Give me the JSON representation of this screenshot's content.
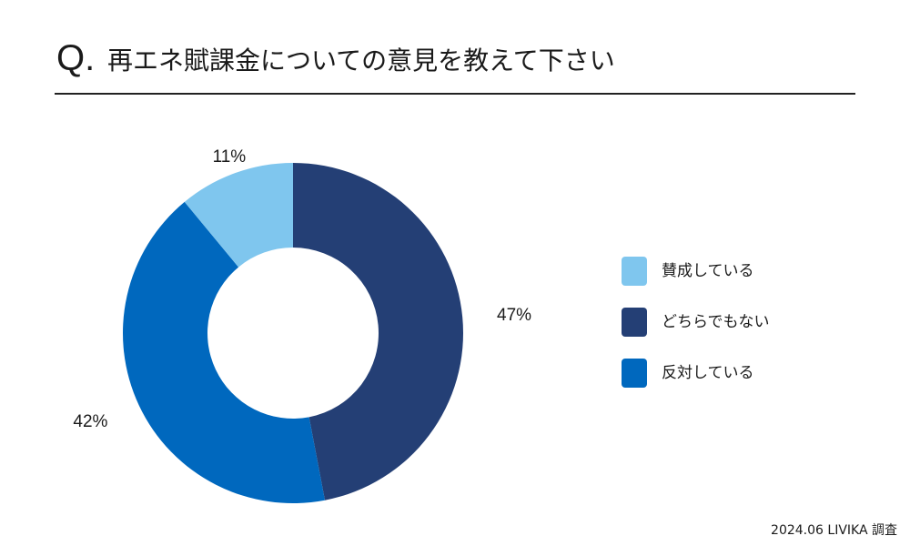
{
  "header": {
    "q_mark": "Q.",
    "title": "再エネ賦課金についての意見を教えて下さい"
  },
  "chart_data": {
    "type": "pie",
    "donut": true,
    "title": "再エネ賦課金についての意見を教えて下さい",
    "categories": [
      "賛成している",
      "どちらでもない",
      "反対している"
    ],
    "values": [
      11,
      47,
      42
    ],
    "value_labels": [
      "11%",
      "47%",
      "42%"
    ],
    "colors": [
      "#7fc6ee",
      "#243f75",
      "#0068be"
    ],
    "legend_position": "right"
  },
  "footnote": "2024.06 LIVIKA 調査"
}
